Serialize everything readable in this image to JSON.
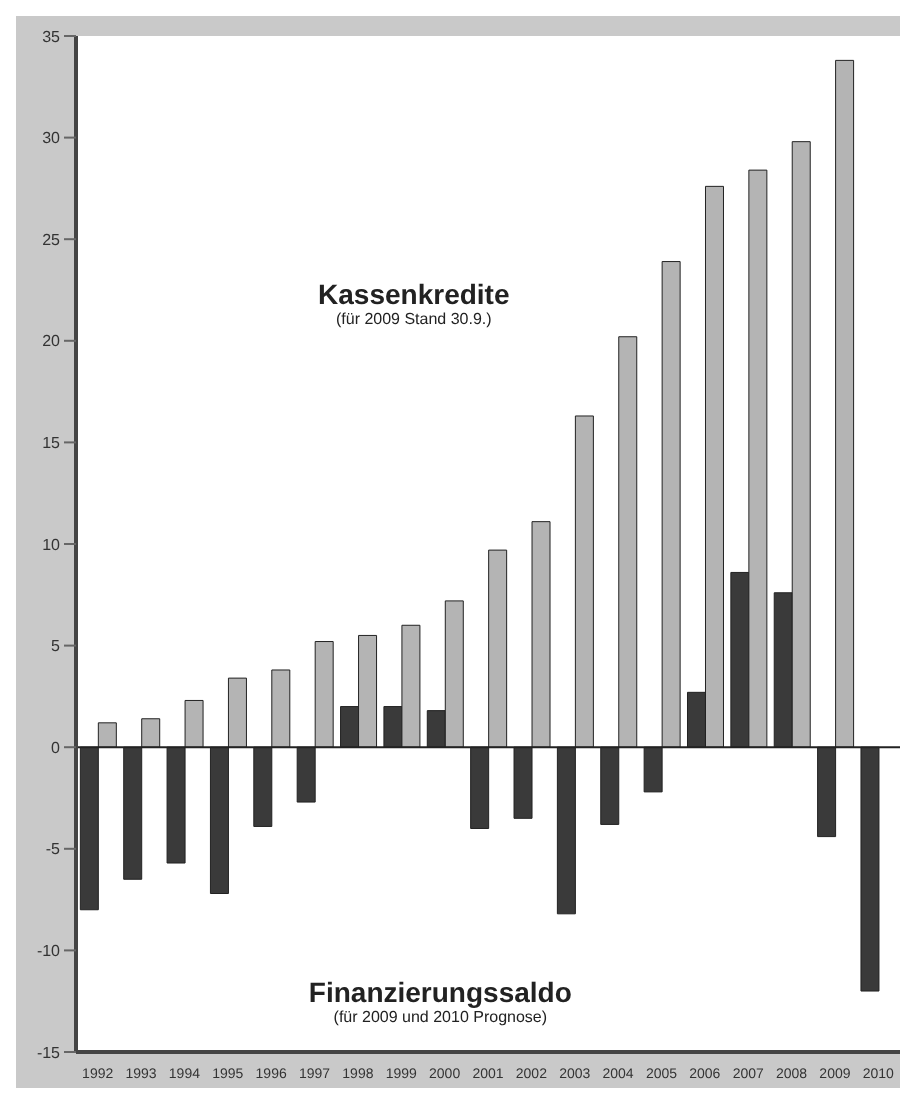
{
  "chart_data": {
    "type": "bar",
    "categories": [
      "1992",
      "1993",
      "1994",
      "1995",
      "1996",
      "1997",
      "1998",
      "1999",
      "2000",
      "2001",
      "2002",
      "2003",
      "2004",
      "2005",
      "2006",
      "2007",
      "2008",
      "2009",
      "2010"
    ],
    "series": [
      {
        "color": "#3a3a3a",
        "values": [
          -8.0,
          -6.5,
          -5.7,
          -7.2,
          -3.9,
          -2.7,
          2.0,
          2.0,
          1.8,
          -4.0,
          -3.5,
          -8.2,
          -3.8,
          -2.2,
          2.7,
          8.6,
          7.6,
          -4.4,
          -12.0
        ]
      },
      {
        "color": "#b4b4b4",
        "values": [
          1.2,
          1.4,
          2.3,
          3.4,
          3.8,
          5.2,
          5.5,
          6.0,
          7.2,
          9.7,
          11.1,
          16.3,
          20.2,
          23.9,
          27.6,
          28.4,
          29.8,
          33.8,
          null
        ]
      }
    ],
    "ylim": [
      -15,
      35
    ],
    "yticks": [
      -15,
      -10,
      -5,
      0,
      5,
      10,
      15,
      20,
      25,
      30,
      35
    ],
    "legend": false,
    "annotations": [
      "Kassenkredite",
      "(für 2009 Stand 30.9.)",
      "Finanzierungssaldo",
      "(für 2009 und 2010 Prognose)"
    ]
  }
}
